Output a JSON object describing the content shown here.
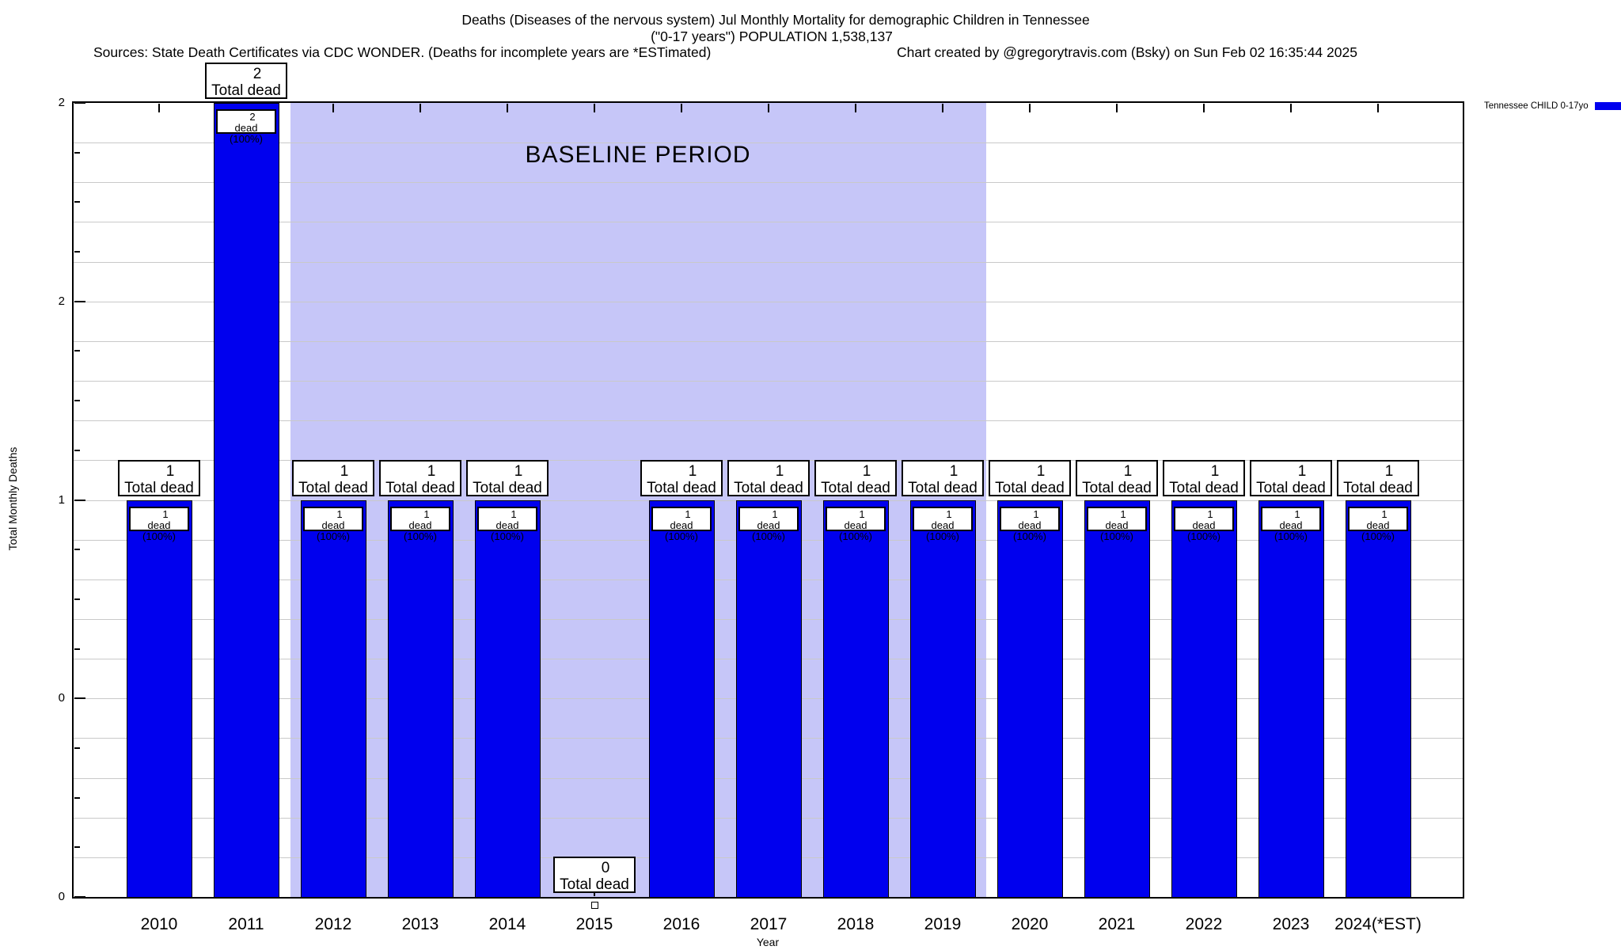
{
  "header": {
    "title_line1": "Deaths (Diseases of the nervous system) Jul Monthly Mortality for demographic Children in Tennessee",
    "title_line2": "(\"0-17 years\") POPULATION 1,538,137",
    "sources": "Sources: State Death Certificates via CDC WONDER. (Deaths for incomplete years are *ESTimated)",
    "credit": "Chart created by @gregorytravis.com (Bsky) on Sun Feb 02 16:35:44 2025"
  },
  "chart_data": {
    "type": "bar",
    "title": "Deaths (Diseases of the nervous system) Jul Monthly Mortality for demographic Children in Tennessee (\"0-17 years\") POPULATION 1,538,137",
    "xlabel": "Year",
    "ylabel": "Total Monthly Deaths",
    "ylim": [
      0,
      2
    ],
    "grid": true,
    "categories": [
      "2010",
      "2011",
      "2012",
      "2013",
      "2014",
      "2015",
      "2016",
      "2017",
      "2018",
      "2019",
      "2020",
      "2021",
      "2022",
      "2023",
      "2024(*EST)"
    ],
    "series": [
      {
        "name": "Tennessee CHILD 0-17yo",
        "values": [
          1,
          2,
          1,
          1,
          1,
          0,
          1,
          1,
          1,
          1,
          1,
          1,
          1,
          1,
          1
        ]
      }
    ],
    "bar_annotations": {
      "top_box_suffix": "Total dead",
      "inner_box_suffix": "dead (100%)",
      "inner_box_shown_when_value_positive": true
    },
    "ytick_values": [
      0,
      0.5,
      1,
      1.5,
      2
    ],
    "ytick_labels": [
      "0",
      "0",
      "1",
      "2",
      "2"
    ],
    "baseline": {
      "label": "BASELINE PERIOD",
      "start_category": "2012",
      "end_category": "2019"
    },
    "legend": {
      "label": "Tennessee CHILD 0-17yo",
      "position": "top-right"
    },
    "colors": {
      "bar": "#0000ee",
      "baseline_region": "#c6c6f8",
      "grid": "#c9c9c9",
      "axis": "#000000",
      "label_box_bg": "#ffffff",
      "label_box_border": "#000000"
    }
  }
}
